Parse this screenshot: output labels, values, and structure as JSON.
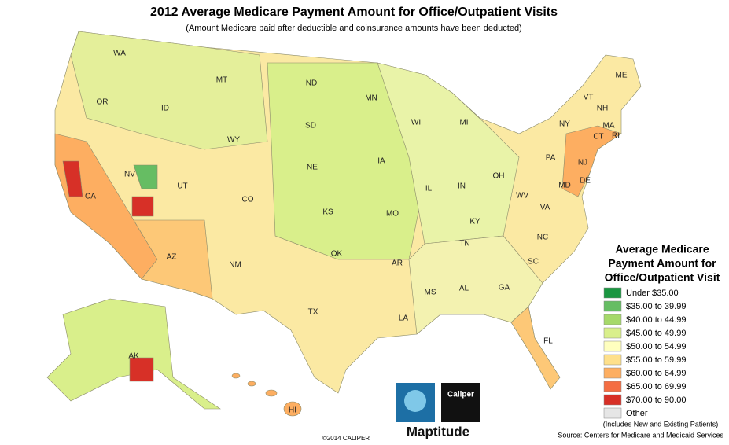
{
  "title": "2012 Average Medicare Payment Amount for Office/Outpatient Visits",
  "subtitle": "(Amount Medicare paid after deductible and coinsurance amounts have been deducted)",
  "map": {
    "state_labels": [
      "WA",
      "OR",
      "CA",
      "NV",
      "ID",
      "MT",
      "WY",
      "UT",
      "AZ",
      "CO",
      "NM",
      "ND",
      "SD",
      "NE",
      "KS",
      "OK",
      "TX",
      "MN",
      "IA",
      "MO",
      "AR",
      "LA",
      "WI",
      "IL",
      "MI",
      "IN",
      "OH",
      "KY",
      "TN",
      "MS",
      "AL",
      "GA",
      "FL",
      "SC",
      "NC",
      "VA",
      "WV",
      "PA",
      "NY",
      "VT",
      "NH",
      "ME",
      "MA",
      "CT",
      "RI",
      "NJ",
      "DE",
      "MD",
      "AK",
      "HI"
    ]
  },
  "legend": {
    "title": [
      "Average Medicare",
      "Payment Amount for",
      "Office/Outpatient Visit"
    ],
    "items": [
      {
        "label": "Under $35.00",
        "color": "#1a9641"
      },
      {
        "label": "$35.00 to 39.99",
        "color": "#66bd63"
      },
      {
        "label": "$40.00 to 44.99",
        "color": "#a6d96a"
      },
      {
        "label": "$45.00 to 49.99",
        "color": "#d9ef8b"
      },
      {
        "label": "$50.00 to 54.99",
        "color": "#ffffbf"
      },
      {
        "label": "$55.00 to 59.99",
        "color": "#fee08b"
      },
      {
        "label": "$60.00 to 64.99",
        "color": "#fdae61"
      },
      {
        "label": "$65.00 to 69.99",
        "color": "#f46d43"
      },
      {
        "label": "$70.00 to 90.00",
        "color": "#d73027"
      },
      {
        "label": "Other",
        "color": "#e6e6e6"
      }
    ],
    "note": "(Includes New and Existing Patients)"
  },
  "source": "Source: Centers for Medicare and Medicaid Services",
  "copyright": "©2014 CALIPER",
  "logo": {
    "brand": "Caliper",
    "product": "Maptitude"
  }
}
